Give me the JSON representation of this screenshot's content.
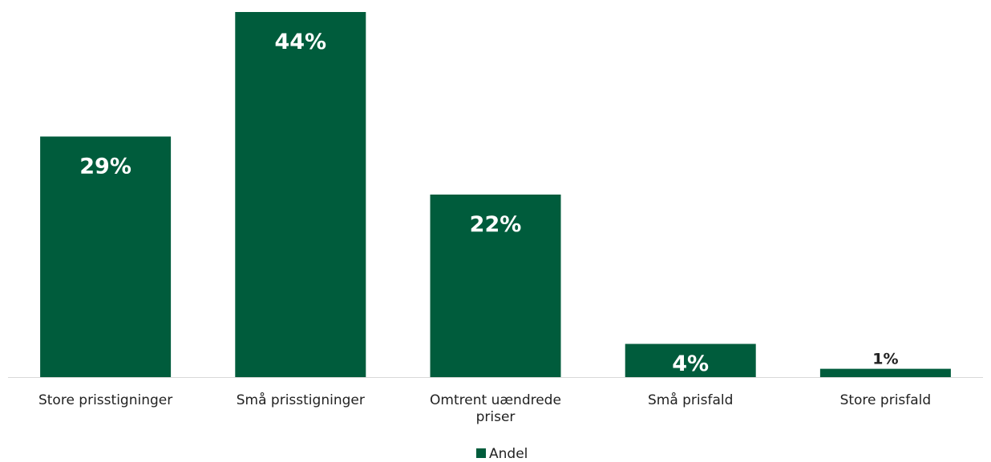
{
  "chart_data": {
    "type": "bar",
    "categories": [
      [
        "Store prisstigninger"
      ],
      [
        "Små prisstigninger"
      ],
      [
        "Omtrent uændrede",
        "priser"
      ],
      [
        "Små prisfald"
      ],
      [
        "Store prisfald"
      ]
    ],
    "series": [
      {
        "name": "Andel",
        "values": [
          29,
          44,
          22,
          4,
          1
        ],
        "labels": [
          "29%",
          "44%",
          "22%",
          "4%",
          "1%"
        ],
        "color": "#005c3c"
      }
    ],
    "ylim": [
      0,
      44
    ],
    "grid": false,
    "legend_position": "bottom-center",
    "axis_color": "#d9d9d9",
    "label_color_inside": "#ffffff",
    "label_color_outside": "#222222"
  }
}
